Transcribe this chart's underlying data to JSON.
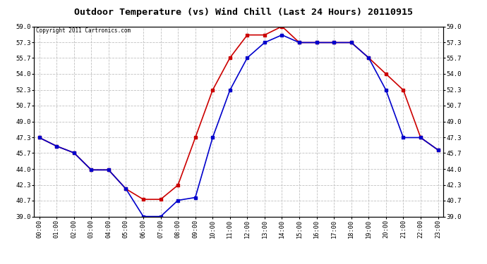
{
  "title": "Outdoor Temperature (vs) Wind Chill (Last 24 Hours) 20110915",
  "copyright": "Copyright 2011 Cartronics.com",
  "hours": [
    0,
    1,
    2,
    3,
    4,
    5,
    6,
    7,
    8,
    9,
    10,
    11,
    12,
    13,
    14,
    15,
    16,
    17,
    18,
    19,
    20,
    21,
    22,
    23
  ],
  "temp": [
    47.3,
    46.4,
    45.7,
    43.9,
    43.9,
    41.9,
    40.8,
    40.8,
    42.3,
    47.3,
    52.3,
    55.7,
    58.1,
    58.1,
    59.0,
    57.3,
    57.3,
    57.3,
    57.3,
    55.7,
    54.0,
    52.3,
    47.3,
    46.0
  ],
  "windchill": [
    47.3,
    46.4,
    45.7,
    43.9,
    43.9,
    41.9,
    39.0,
    39.0,
    40.7,
    41.0,
    47.3,
    52.3,
    55.7,
    57.3,
    58.1,
    57.3,
    57.3,
    57.3,
    57.3,
    55.7,
    52.3,
    47.3,
    47.3,
    46.0
  ],
  "temp_color": "#cc0000",
  "wind_color": "#0000cc",
  "bg_color": "#ffffff",
  "grid_color": "#c0c0c0",
  "ymin": 39.0,
  "ymax": 59.0,
  "yticks": [
    39.0,
    40.7,
    42.3,
    44.0,
    45.7,
    47.3,
    49.0,
    50.7,
    52.3,
    54.0,
    55.7,
    57.3,
    59.0
  ]
}
